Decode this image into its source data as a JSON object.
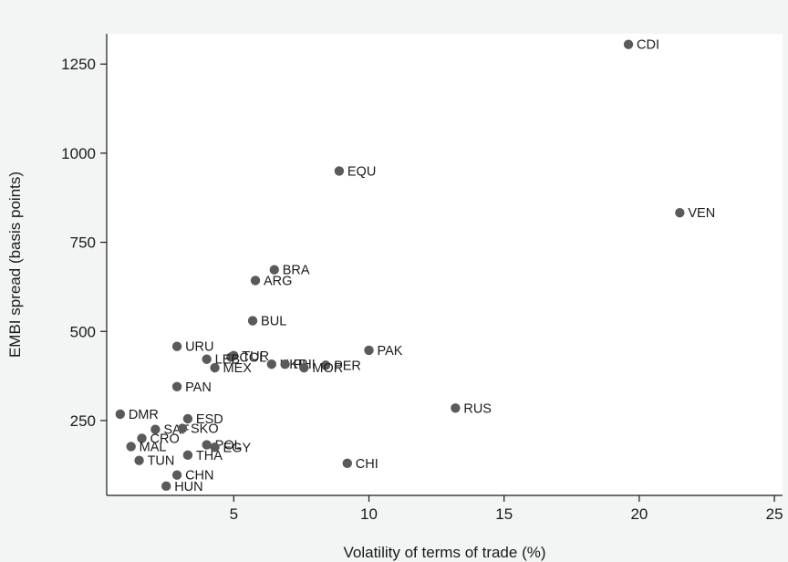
{
  "chart_data": {
    "type": "scatter",
    "title": "",
    "xlabel": "Volatility of terms of trade (%)",
    "ylabel": "EMBI spread (basis points)",
    "xlim": [
      0.3,
      25.3
    ],
    "ylim": [
      40,
      1335
    ],
    "xticks": [
      5,
      10,
      15,
      20,
      25
    ],
    "yticks": [
      250,
      500,
      750,
      1000,
      1250
    ],
    "grid": false,
    "legend": "none",
    "marker_color": "#5a5a5a",
    "points": [
      {
        "label": "CDI",
        "x": 19.6,
        "y": 1305
      },
      {
        "label": "EQU",
        "x": 8.9,
        "y": 950
      },
      {
        "label": "VEN",
        "x": 21.5,
        "y": 833
      },
      {
        "label": "BRA",
        "x": 6.5,
        "y": 673
      },
      {
        "label": "ARG",
        "x": 5.8,
        "y": 643
      },
      {
        "label": "BUL",
        "x": 5.7,
        "y": 530
      },
      {
        "label": "URU",
        "x": 2.9,
        "y": 458
      },
      {
        "label": "PAK",
        "x": 10.0,
        "y": 447
      },
      {
        "label": "TUR",
        "x": 5.0,
        "y": 432
      },
      {
        "label": "COL",
        "x": 4.9,
        "y": 428
      },
      {
        "label": "LEB",
        "x": 4.0,
        "y": 422
      },
      {
        "label": "UKR",
        "x": 6.4,
        "y": 408
      },
      {
        "label": "PHI",
        "x": 6.9,
        "y": 408
      },
      {
        "label": "PER",
        "x": 8.4,
        "y": 405
      },
      {
        "label": "MOR",
        "x": 7.6,
        "y": 398
      },
      {
        "label": "MEX",
        "x": 4.3,
        "y": 398
      },
      {
        "label": "PAN",
        "x": 2.9,
        "y": 345
      },
      {
        "label": "RUS",
        "x": 13.2,
        "y": 285
      },
      {
        "label": "DMR",
        "x": 0.8,
        "y": 268
      },
      {
        "label": "ESD",
        "x": 3.3,
        "y": 255
      },
      {
        "label": "SAF",
        "x": 2.1,
        "y": 225
      },
      {
        "label": "SKO",
        "x": 3.1,
        "y": 228
      },
      {
        "label": "CRO",
        "x": 1.6,
        "y": 200
      },
      {
        "label": "MAL",
        "x": 1.2,
        "y": 177
      },
      {
        "label": "POL",
        "x": 4.0,
        "y": 182
      },
      {
        "label": "EGY",
        "x": 4.3,
        "y": 175
      },
      {
        "label": "THA",
        "x": 3.3,
        "y": 153
      },
      {
        "label": "TUN",
        "x": 1.5,
        "y": 138
      },
      {
        "label": "CHI",
        "x": 9.2,
        "y": 130
      },
      {
        "label": "CHN",
        "x": 2.9,
        "y": 97
      },
      {
        "label": "HUN",
        "x": 2.5,
        "y": 66
      }
    ]
  }
}
